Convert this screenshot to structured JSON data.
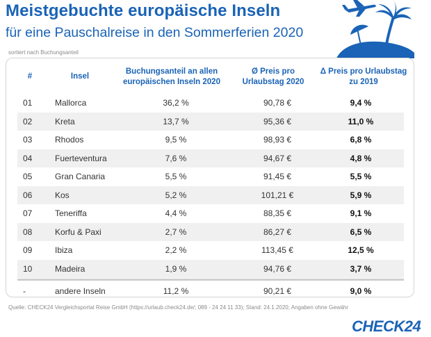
{
  "header": {
    "title": "Meistgebuchte europäische Inseln",
    "subtitle": "für eine Pauschalreise in den Sommerferien 2020",
    "sort_note": "sortiert nach Buchungsanteil"
  },
  "graphic": {
    "icons": [
      "airplane-icon",
      "palm-tree-icon",
      "beach-umbrella-icon"
    ],
    "accent": "#1a63b6"
  },
  "chart_data": {
    "type": "table",
    "columns": [
      "#",
      "Insel",
      "Buchungsanteil an allen europäischen Inseln 2020",
      "Ø Preis pro Urlaubstag 2020",
      "Δ Preis pro Urlaubstag zu 2019"
    ],
    "rows": [
      {
        "rank": "01",
        "island": "Mallorca",
        "share": "36,2 %",
        "price": "90,78 €",
        "delta": "9,4 %"
      },
      {
        "rank": "02",
        "island": "Kreta",
        "share": "13,7 %",
        "price": "95,36 €",
        "delta": "11,0 %"
      },
      {
        "rank": "03",
        "island": "Rhodos",
        "share": "9,5 %",
        "price": "98,93 €",
        "delta": "6,8 %"
      },
      {
        "rank": "04",
        "island": "Fuerteventura",
        "share": "7,6 %",
        "price": "94,67 €",
        "delta": "4,8 %"
      },
      {
        "rank": "05",
        "island": "Gran Canaria",
        "share": "5,5 %",
        "price": "91,45 €",
        "delta": "5,5 %"
      },
      {
        "rank": "06",
        "island": "Kos",
        "share": "5,2 %",
        "price": "101,21 €",
        "delta": "5,9 %"
      },
      {
        "rank": "07",
        "island": "Teneriffa",
        "share": "4,4 %",
        "price": "88,35 €",
        "delta": "9,1 %"
      },
      {
        "rank": "08",
        "island": "Korfu & Paxi",
        "share": "2,7 %",
        "price": "86,27 €",
        "delta": "6,5 %"
      },
      {
        "rank": "09",
        "island": "Ibiza",
        "share": "2,2 %",
        "price": "113,45 €",
        "delta": "12,5 %"
      },
      {
        "rank": "10",
        "island": "Madeira",
        "share": "1,9 %",
        "price": "94,76 €",
        "delta": "3,7 %"
      }
    ],
    "summary": {
      "rank": "-",
      "island": "andere Inseln",
      "share": "11,2 %",
      "price": "90,21 €",
      "delta": "9,0 %"
    }
  },
  "footer": {
    "source": "Quelle: CHECK24 Vergleichsportal Reise GmbH (https://urlaub.check24.de/; 089 - 24 24 11 33); Stand: 24.1.2020; Angaben ohne Gewähr",
    "logo": "CHECK24"
  }
}
